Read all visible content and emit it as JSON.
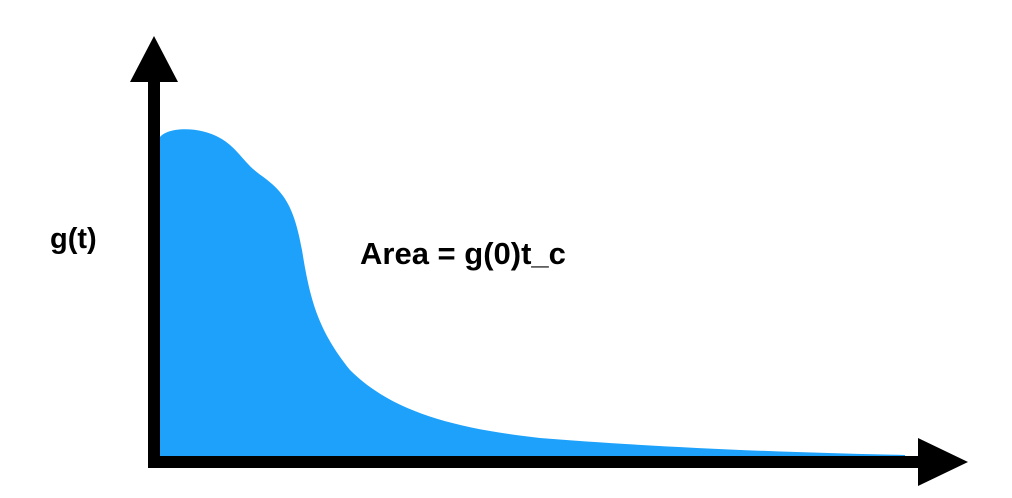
{
  "diagram": {
    "y_axis_label": "g(t)",
    "annotation": "Area = g(0)t_c",
    "colors": {
      "fill": "#1da1fb",
      "axis": "#000000",
      "background": "#ffffff"
    }
  }
}
